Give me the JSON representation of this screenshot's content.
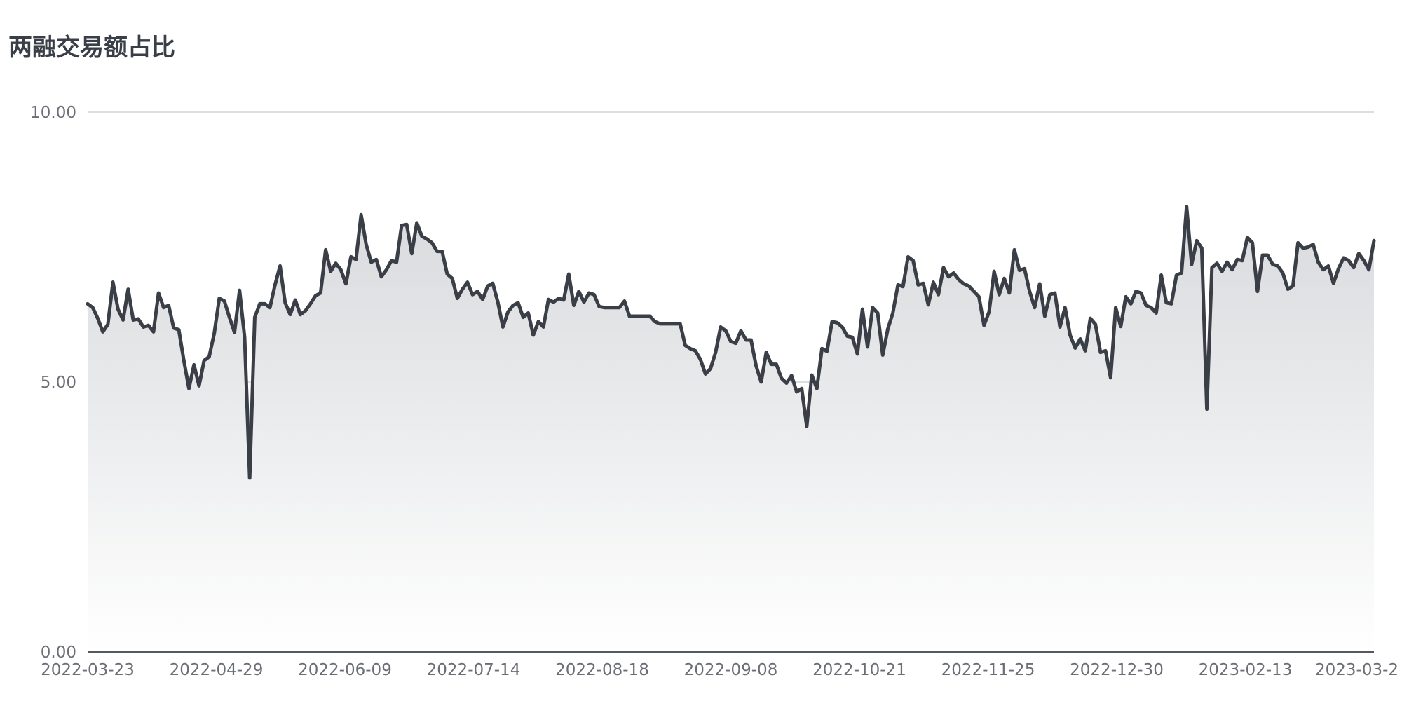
{
  "chart_data": {
    "type": "area",
    "title": "两融交易额占比",
    "xlabel": "",
    "ylabel": "",
    "ylim": [
      0,
      10
    ],
    "y_ticks": [
      "0.00",
      "5.00",
      "10.00"
    ],
    "x_ticks": [
      "2022-03-23",
      "2022-04-29",
      "2022-06-09",
      "2022-07-14",
      "2022-08-18",
      "2022-09-08",
      "2022-10-21",
      "2022-11-25",
      "2022-12-30",
      "2023-02-13",
      "2023-03-2"
    ],
    "grid": true,
    "legend": "none",
    "colors": {
      "line": "#3a3f47",
      "fill_top": "#d8dadd",
      "grid": "#cfd3da",
      "axis": "#555a60",
      "tick_text": "#6b6f75"
    },
    "series": [
      {
        "values": [
          6.45,
          6.38,
          6.18,
          5.93,
          6.07,
          6.85,
          6.35,
          6.15,
          6.72,
          6.15,
          6.17,
          6.02,
          6.05,
          5.93,
          6.65,
          6.38,
          6.42,
          6.0,
          5.97,
          5.4,
          4.88,
          5.32,
          4.93,
          5.4,
          5.47,
          5.9,
          6.55,
          6.5,
          6.2,
          5.92,
          6.7,
          5.83,
          3.22,
          6.2,
          6.45,
          6.45,
          6.38,
          6.8,
          7.15,
          6.47,
          6.25,
          6.52,
          6.25,
          6.32,
          6.45,
          6.6,
          6.65,
          7.45,
          7.05,
          7.2,
          7.08,
          6.82,
          7.32,
          7.27,
          8.1,
          7.55,
          7.22,
          7.27,
          6.95,
          7.08,
          7.25,
          7.22,
          7.9,
          7.92,
          7.38,
          7.95,
          7.7,
          7.65,
          7.58,
          7.42,
          7.42,
          7.0,
          6.92,
          6.55,
          6.72,
          6.85,
          6.62,
          6.68,
          6.53,
          6.78,
          6.83,
          6.48,
          6.02,
          6.3,
          6.42,
          6.47,
          6.2,
          6.28,
          5.87,
          6.12,
          6.02,
          6.53,
          6.48,
          6.55,
          6.52,
          7.0,
          6.42,
          6.68,
          6.48,
          6.65,
          6.62,
          6.4,
          6.38,
          6.38,
          6.38,
          6.38,
          6.5,
          6.22,
          6.22,
          6.22,
          6.22,
          6.22,
          6.12,
          6.08,
          6.08,
          6.08,
          6.08,
          6.08,
          5.68,
          5.62,
          5.58,
          5.42,
          5.15,
          5.25,
          5.55,
          6.02,
          5.95,
          5.75,
          5.72,
          5.95,
          5.78,
          5.78,
          5.3,
          5.0,
          5.55,
          5.33,
          5.33,
          5.07,
          4.98,
          5.12,
          4.82,
          4.88,
          4.18,
          5.13,
          4.88,
          5.62,
          5.57,
          6.12,
          6.1,
          6.02,
          5.85,
          5.83,
          5.52,
          6.35,
          5.65,
          6.38,
          6.28,
          5.5,
          5.98,
          6.28,
          6.8,
          6.77,
          7.32,
          7.25,
          6.8,
          6.83,
          6.43,
          6.85,
          6.62,
          7.12,
          6.95,
          7.02,
          6.9,
          6.82,
          6.78,
          6.68,
          6.58,
          6.05,
          6.3,
          7.05,
          6.62,
          6.92,
          6.65,
          7.45,
          7.07,
          7.1,
          6.68,
          6.38,
          6.82,
          6.22,
          6.62,
          6.65,
          6.02,
          6.38,
          5.87,
          5.63,
          5.8,
          5.58,
          6.18,
          6.07,
          5.55,
          5.58,
          5.08,
          6.38,
          6.03,
          6.58,
          6.45,
          6.68,
          6.65,
          6.42,
          6.38,
          6.28,
          6.98,
          6.47,
          6.45,
          6.98,
          7.02,
          8.25,
          7.18,
          7.62,
          7.48,
          4.5,
          7.12,
          7.2,
          7.05,
          7.22,
          7.08,
          7.27,
          7.25,
          7.68,
          7.58,
          6.68,
          7.35,
          7.35,
          7.18,
          7.15,
          7.02,
          6.72,
          6.78,
          7.58,
          7.48,
          7.5,
          7.55,
          7.22,
          7.08,
          7.15,
          6.83,
          7.1,
          7.3,
          7.25,
          7.12,
          7.38,
          7.25,
          7.08,
          7.62
        ]
      }
    ]
  }
}
